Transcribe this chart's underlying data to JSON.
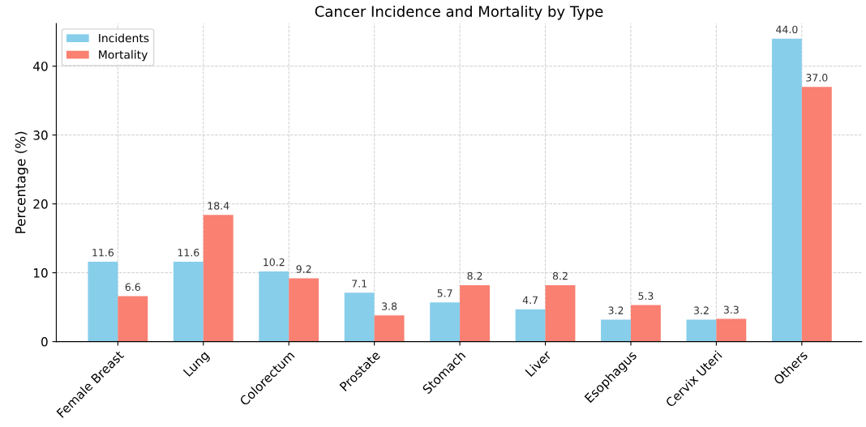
{
  "chart_data": {
    "type": "bar",
    "title": "Cancer Incidence and Mortality by Type",
    "ylabel": "Percentage (%)",
    "categories": [
      "Female Breast",
      "Lung",
      "Colorectum",
      "Prostate",
      "Stomach",
      "Liver",
      "Esophagus",
      "Cervix Uteri",
      "Others"
    ],
    "series": [
      {
        "name": "Incidents",
        "color": "#87ceeb",
        "values": [
          11.6,
          11.6,
          10.2,
          7.1,
          5.7,
          4.7,
          3.2,
          3.2,
          44.0
        ],
        "value_labels": [
          "11.6",
          "11.6",
          "10.2",
          "7.1",
          "5.7",
          "4.7",
          "3.2",
          "3.2",
          "44.0"
        ]
      },
      {
        "name": "Mortality",
        "color": "#fa8072",
        "values": [
          6.6,
          18.4,
          9.2,
          3.8,
          8.2,
          8.2,
          5.3,
          3.3,
          37.0
        ],
        "value_labels": [
          "6.6",
          "18.4",
          "9.2",
          "3.8",
          "8.2",
          "8.2",
          "5.3",
          "3.3",
          "37.0"
        ]
      }
    ],
    "ylim": [
      0,
      46.2
    ],
    "yticks": [
      0,
      10,
      20,
      30,
      40
    ],
    "grid": true,
    "legend": "top left"
  }
}
